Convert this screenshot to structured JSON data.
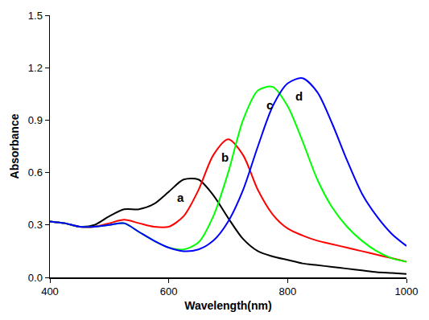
{
  "chart_data": {
    "type": "line",
    "x_label": "Wavelength(nm)",
    "y_label": "Absorbance",
    "x": [
      400,
      425,
      450,
      475,
      500,
      525,
      550,
      575,
      600,
      625,
      650,
      675,
      700,
      725,
      750,
      775,
      800,
      825,
      850,
      875,
      900,
      925,
      950,
      975,
      1000
    ],
    "series": [
      {
        "name": "a",
        "color": "#000000",
        "values": [
          0.32,
          0.31,
          0.29,
          0.3,
          0.35,
          0.39,
          0.39,
          0.42,
          0.49,
          0.56,
          0.56,
          0.47,
          0.34,
          0.22,
          0.15,
          0.12,
          0.1,
          0.08,
          0.07,
          0.06,
          0.05,
          0.04,
          0.03,
          0.025,
          0.02
        ]
      },
      {
        "name": "b",
        "color": "#ff0000",
        "values": [
          0.32,
          0.31,
          0.29,
          0.29,
          0.31,
          0.33,
          0.31,
          0.29,
          0.29,
          0.35,
          0.5,
          0.7,
          0.79,
          0.7,
          0.5,
          0.36,
          0.28,
          0.24,
          0.21,
          0.19,
          0.17,
          0.15,
          0.13,
          0.11,
          0.09
        ]
      },
      {
        "name": "c",
        "color": "#00ff00",
        "values": [
          0.32,
          0.31,
          0.29,
          0.29,
          0.3,
          0.31,
          0.26,
          0.21,
          0.17,
          0.16,
          0.2,
          0.35,
          0.6,
          0.9,
          1.07,
          1.09,
          0.98,
          0.78,
          0.56,
          0.4,
          0.29,
          0.21,
          0.15,
          0.11,
          0.09
        ]
      },
      {
        "name": "d",
        "color": "#0000ff",
        "values": [
          0.32,
          0.31,
          0.29,
          0.29,
          0.3,
          0.31,
          0.26,
          0.21,
          0.17,
          0.15,
          0.16,
          0.21,
          0.32,
          0.5,
          0.75,
          0.98,
          1.11,
          1.14,
          1.06,
          0.88,
          0.67,
          0.48,
          0.35,
          0.25,
          0.18
        ]
      }
    ],
    "xlim": [
      400,
      1000
    ],
    "xticks": [
      400,
      600,
      800,
      1000
    ],
    "ylim": [
      0,
      1.5
    ],
    "yticks": [
      {
        "value": 0,
        "label": "0.0"
      },
      0.3,
      0.6,
      0.9,
      1.2,
      1.5
    ],
    "grid": false
  }
}
